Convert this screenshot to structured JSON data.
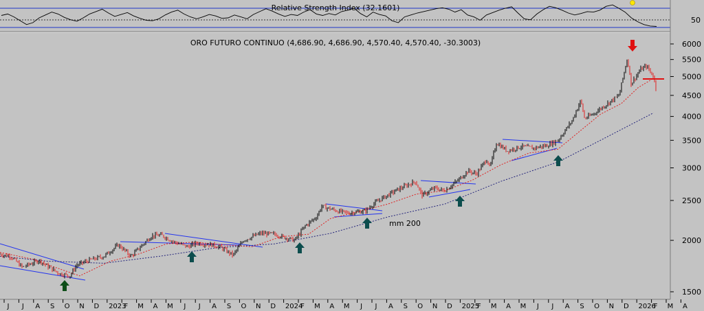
{
  "chart_data": [
    {
      "type": "line",
      "panel": "indicator",
      "title": "Relative Strength Index (32.1601)",
      "y_tick_labels": [
        "50"
      ],
      "reference_levels": [
        30,
        50,
        70
      ],
      "last_value": 32.1601,
      "series": [
        {
          "values": [
            55,
            58,
            52,
            44,
            36,
            40,
            50,
            56,
            62,
            58,
            51,
            46,
            43,
            50,
            58,
            63,
            68,
            60,
            53,
            57,
            61,
            54,
            49,
            45,
            44,
            48,
            56,
            62,
            66,
            58,
            52,
            48,
            52,
            57,
            54,
            49,
            50,
            56,
            52,
            48,
            57,
            63,
            69,
            64,
            58,
            53,
            57,
            55,
            62,
            67,
            58,
            55,
            59,
            56,
            63,
            66,
            70,
            59,
            52,
            62,
            57,
            54,
            44,
            40,
            52,
            56,
            60,
            63,
            66,
            69,
            71,
            68,
            62,
            67,
            56,
            52,
            45,
            56,
            61,
            66,
            70,
            73,
            60,
            48,
            46,
            58,
            67,
            74,
            71,
            66,
            60,
            56,
            59,
            63,
            62,
            66,
            74,
            77,
            70,
            62,
            50,
            42,
            36,
            33,
            32.16
          ]
        }
      ]
    },
    {
      "type": "line",
      "panel": "price",
      "title": "ORO FUTURO CONTINUO (4,686.90, 4,686.90, 4,570.40, 4,570.40, -30.3003)",
      "y_scale": "log",
      "ylim": [
        1450,
        6500
      ],
      "y_ticks": [
        1500,
        2000,
        2500,
        3000,
        3500,
        4000,
        4500,
        5000,
        5500,
        6000
      ],
      "x_tick_labels": [
        "J",
        "J",
        "A",
        "S",
        "O",
        "N",
        "D",
        "2023",
        "F",
        "M",
        "A",
        "M",
        "J",
        "J",
        "A",
        "S",
        "O",
        "N",
        "D",
        "2024",
        "F",
        "M",
        "A",
        "M",
        "J",
        "J",
        "A",
        "S",
        "O",
        "N",
        "D",
        "2025",
        "F",
        "M",
        "A",
        "M",
        "J",
        "J",
        "A",
        "S",
        "O",
        "N",
        "D",
        "2026",
        "F",
        "M",
        "A"
      ],
      "x_range": [
        "2022-05-23",
        "2026-04-30"
      ],
      "ohlc": {
        "open": 4686.9,
        "high": 4686.9,
        "low": 4570.4,
        "close": 4570.4,
        "change": -30.3003
      },
      "annotations": [
        {
          "text": "mm 200"
        }
      ],
      "series": [
        {
          "name": "price",
          "x": [
            "2022-05-23",
            "2022-06-15",
            "2022-07-10",
            "2022-08-15",
            "2022-09-05",
            "2022-09-28",
            "2022-10-20",
            "2022-11-03",
            "2022-12-01",
            "2023-01-01",
            "2023-02-01",
            "2023-02-28",
            "2023-04-13",
            "2023-05-04",
            "2023-06-01",
            "2023-06-29",
            "2023-07-20",
            "2023-08-21",
            "2023-09-10",
            "2023-10-05",
            "2023-10-27",
            "2023-12-03",
            "2024-01-01",
            "2024-01-20",
            "2024-02-14",
            "2024-03-08",
            "2024-04-01",
            "2024-04-12",
            "2024-05-20",
            "2024-06-10",
            "2024-07-15",
            "2024-08-01",
            "2024-08-20",
            "2024-09-20",
            "2024-10-30",
            "2024-11-14",
            "2024-12-10",
            "2025-01-01",
            "2025-01-30",
            "2025-02-20",
            "2025-03-10",
            "2025-04-01",
            "2025-04-08",
            "2025-04-22",
            "2025-05-15",
            "2025-06-15",
            "2025-07-10",
            "2025-08-08",
            "2025-09-01",
            "2025-10-01",
            "2025-10-20",
            "2025-10-28",
            "2025-11-15",
            "2025-12-10",
            "2026-01-10",
            "2026-01-28",
            "2026-02-05",
            "2026-02-25",
            "2026-03-10",
            "2026-03-25",
            "2026-04-01"
          ],
          "values": [
            1850,
            1830,
            1720,
            1790,
            1720,
            1660,
            1640,
            1740,
            1790,
            1830,
            1950,
            1830,
            2050,
            2060,
            1980,
            1930,
            1970,
            1950,
            1920,
            1840,
            2000,
            2080,
            2070,
            2040,
            2000,
            2170,
            2280,
            2420,
            2350,
            2330,
            2360,
            2450,
            2530,
            2650,
            2780,
            2570,
            2680,
            2640,
            2800,
            2950,
            2900,
            3150,
            3000,
            3450,
            3300,
            3380,
            3350,
            3400,
            3500,
            3900,
            4380,
            3950,
            4050,
            4250,
            4500,
            5550,
            4800,
            5200,
            5300,
            5000,
            4570
          ]
        },
        {
          "name": "red moving average",
          "x": [
            "2022-05-23",
            "2022-08-01",
            "2022-10-01",
            "2022-11-10",
            "2023-01-15",
            "2023-03-15",
            "2023-05-15",
            "2023-07-15",
            "2023-09-15",
            "2023-11-15",
            "2024-01-15",
            "2024-03-15",
            "2024-05-01",
            "2024-07-01",
            "2024-09-01",
            "2024-11-01",
            "2025-01-01",
            "2025-03-01",
            "2025-05-01",
            "2025-07-01",
            "2025-09-01",
            "2025-10-20",
            "2025-12-01",
            "2026-01-15",
            "2026-02-20",
            "2026-03-25"
          ],
          "values": [
            1870,
            1800,
            1700,
            1640,
            1780,
            1850,
            1960,
            1980,
            1950,
            1930,
            2040,
            2070,
            2260,
            2350,
            2450,
            2590,
            2640,
            2800,
            3050,
            3260,
            3330,
            3700,
            4050,
            4300,
            4700,
            4950
          ]
        },
        {
          "name": "mm 200",
          "x": [
            "2022-05-23",
            "2022-09-01",
            "2023-01-01",
            "2023-05-01",
            "2023-09-01",
            "2024-01-01",
            "2024-05-01",
            "2024-09-01",
            "2025-01-01",
            "2025-05-01",
            "2025-09-01",
            "2025-12-01",
            "2026-03-25"
          ],
          "values": [
            1830,
            1780,
            1760,
            1830,
            1920,
            1960,
            2080,
            2280,
            2450,
            2780,
            3100,
            3500,
            4080
          ]
        }
      ]
    }
  ]
}
